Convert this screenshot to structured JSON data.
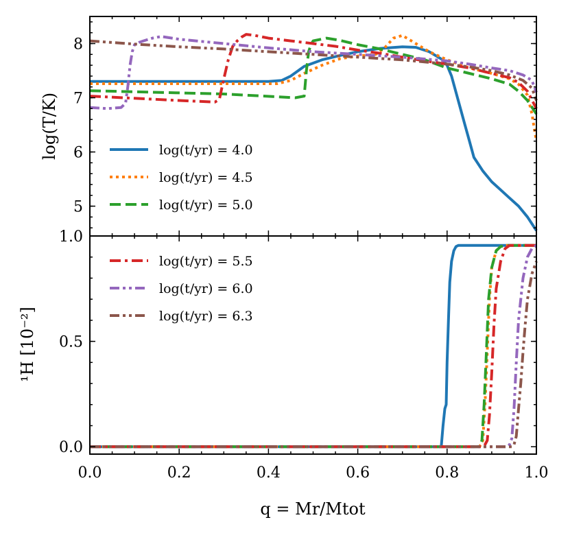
{
  "chart_data": [
    {
      "panel": "top",
      "type": "line",
      "ylabel": "log(T/K)",
      "xlim": [
        0.0,
        1.0
      ],
      "ylim": [
        4.45,
        8.5
      ],
      "yticks": [
        5,
        6,
        7,
        8
      ],
      "yticklabels": [
        "5",
        "6",
        "7",
        "8"
      ],
      "legend_position": "lower-left",
      "legend_entries": [
        "log(t/yr) = 4.0",
        "log(t/yr) = 4.5",
        "log(t/yr) = 5.0"
      ],
      "series": [
        {
          "name": "log(t/yr) = 4.0",
          "color": "#1f77b4",
          "dash": "solid",
          "x": [
            0,
            0.4,
            0.43,
            0.45,
            0.48,
            0.52,
            0.56,
            0.6,
            0.65,
            0.7,
            0.73,
            0.76,
            0.79,
            0.8,
            0.81,
            0.82,
            0.83,
            0.84,
            0.85,
            0.86,
            0.88,
            0.9,
            0.92,
            0.94,
            0.96,
            0.98,
            1.0
          ],
          "y": [
            7.3,
            7.3,
            7.32,
            7.4,
            7.58,
            7.7,
            7.78,
            7.85,
            7.91,
            7.94,
            7.93,
            7.85,
            7.7,
            7.6,
            7.4,
            7.1,
            6.8,
            6.5,
            6.2,
            5.9,
            5.65,
            5.45,
            5.3,
            5.15,
            5.0,
            4.8,
            4.55
          ]
        },
        {
          "name": "log(t/yr) = 4.5",
          "color": "#ff7f0e",
          "dash": "dotted",
          "x": [
            0,
            0.42,
            0.45,
            0.48,
            0.52,
            0.56,
            0.6,
            0.64,
            0.66,
            0.68,
            0.7,
            0.73,
            0.76,
            0.8,
            0.85,
            0.9,
            0.94,
            0.96,
            0.98,
            0.99,
            1.0
          ],
          "y": [
            7.26,
            7.26,
            7.32,
            7.45,
            7.6,
            7.72,
            7.77,
            7.8,
            7.92,
            8.1,
            8.15,
            8.0,
            7.85,
            7.7,
            7.55,
            7.45,
            7.35,
            7.25,
            7.05,
            6.7,
            6.2
          ]
        },
        {
          "name": "log(t/yr) = 5.0",
          "color": "#2ca02c",
          "dash": "dashed",
          "x": [
            0,
            0.3,
            0.46,
            0.48,
            0.485,
            0.49,
            0.495,
            0.5,
            0.53,
            0.56,
            0.6,
            0.65,
            0.7,
            0.75,
            0.8,
            0.85,
            0.9,
            0.94,
            0.96,
            0.98,
            1.0
          ],
          "y": [
            7.13,
            7.07,
            7.0,
            7.03,
            7.5,
            7.85,
            7.98,
            8.05,
            8.1,
            8.06,
            7.98,
            7.9,
            7.8,
            7.7,
            7.55,
            7.45,
            7.35,
            7.25,
            7.12,
            6.95,
            6.7
          ]
        },
        {
          "name": "log(t/yr) = 5.5",
          "color": "#d62728",
          "dash": "dashdot",
          "x": [
            0,
            0.1,
            0.2,
            0.28,
            0.29,
            0.3,
            0.31,
            0.32,
            0.33,
            0.34,
            0.35,
            0.37,
            0.4,
            0.45,
            0.5,
            0.55,
            0.6,
            0.65,
            0.7,
            0.75,
            0.8,
            0.85,
            0.9,
            0.94,
            0.96,
            0.98,
            1.0
          ],
          "y": [
            7.03,
            6.99,
            6.95,
            6.92,
            6.97,
            7.35,
            7.7,
            7.95,
            8.05,
            8.12,
            8.17,
            8.15,
            8.1,
            8.05,
            8.0,
            7.95,
            7.88,
            7.82,
            7.75,
            7.68,
            7.62,
            7.55,
            7.45,
            7.37,
            7.28,
            7.12,
            6.8
          ]
        },
        {
          "name": "log(t/yr) = 6.0",
          "color": "#9467bd",
          "dash": "dashdotdot",
          "x": [
            0,
            0.04,
            0.07,
            0.08,
            0.085,
            0.09,
            0.095,
            0.1,
            0.11,
            0.12,
            0.14,
            0.16,
            0.2,
            0.3,
            0.4,
            0.5,
            0.6,
            0.7,
            0.8,
            0.85,
            0.9,
            0.94,
            0.97,
            0.99,
            1.0
          ],
          "y": [
            6.82,
            6.8,
            6.82,
            6.9,
            7.2,
            7.6,
            7.85,
            7.98,
            8.02,
            8.05,
            8.1,
            8.13,
            8.08,
            8.0,
            7.92,
            7.85,
            7.8,
            7.75,
            7.68,
            7.62,
            7.55,
            7.5,
            7.42,
            7.32,
            7.1
          ]
        },
        {
          "name": "log(t/yr) = 6.3",
          "color": "#8c564b",
          "dash": "dashdotdot",
          "x": [
            0,
            0.1,
            0.2,
            0.3,
            0.4,
            0.5,
            0.6,
            0.7,
            0.8,
            0.85,
            0.9,
            0.94,
            0.97,
            0.99,
            1.0
          ],
          "y": [
            8.05,
            7.99,
            7.94,
            7.9,
            7.85,
            7.8,
            7.75,
            7.7,
            7.62,
            7.57,
            7.5,
            7.42,
            7.32,
            7.18,
            6.95
          ]
        }
      ]
    },
    {
      "panel": "bottom",
      "type": "line",
      "ylabel": "¹H [10⁻²]",
      "xlabel": "q = Mr/Mtot",
      "xlim": [
        0.0,
        1.0
      ],
      "ylim": [
        -0.035,
        1.0
      ],
      "xticks": [
        0.0,
        0.2,
        0.4,
        0.6,
        0.8,
        1.0
      ],
      "xticklabels": [
        "0.0",
        "0.2",
        "0.4",
        "0.6",
        "0.8",
        "1.0"
      ],
      "yticks": [
        0.0,
        0.5,
        1.0
      ],
      "yticklabels": [
        "0.0",
        "0.5",
        "1.0"
      ],
      "legend_position": "upper-left",
      "legend_entries": [
        "log(t/yr) = 5.5",
        "log(t/yr) = 6.0",
        "log(t/yr) = 6.3"
      ],
      "series": [
        {
          "name": "log(t/yr) = 4.0",
          "color": "#1f77b4",
          "dash": "solid",
          "x": [
            0,
            0.787,
            0.791,
            0.795,
            0.798,
            0.8,
            0.803,
            0.806,
            0.81,
            0.815,
            0.82,
            0.825,
            1.0
          ],
          "y": [
            0,
            0,
            0.1,
            0.18,
            0.2,
            0.4,
            0.6,
            0.78,
            0.88,
            0.93,
            0.95,
            0.955,
            0.955
          ]
        },
        {
          "name": "log(t/yr) = 4.5",
          "color": "#ff7f0e",
          "dash": "dotted",
          "x": [
            0,
            0.872,
            0.876,
            0.88,
            0.885,
            0.89,
            0.895,
            0.9,
            0.91,
            0.92,
            0.93,
            1.0
          ],
          "y": [
            0,
            0,
            0.01,
            0.03,
            0.2,
            0.45,
            0.7,
            0.85,
            0.93,
            0.95,
            0.955,
            0.955
          ]
        },
        {
          "name": "log(t/yr) = 5.0",
          "color": "#2ca02c",
          "dash": "dashed",
          "x": [
            0,
            0.87,
            0.874,
            0.878,
            0.883,
            0.888,
            0.893,
            0.9,
            0.91,
            0.92,
            0.93,
            1.0
          ],
          "y": [
            0,
            0,
            0.01,
            0.03,
            0.2,
            0.45,
            0.7,
            0.85,
            0.93,
            0.95,
            0.955,
            0.955
          ]
        },
        {
          "name": "log(t/yr) = 5.5",
          "color": "#d62728",
          "dash": "dashdot",
          "x": [
            0,
            0.88,
            0.885,
            0.89,
            0.895,
            0.9,
            0.905,
            0.91,
            0.92,
            0.93,
            0.94,
            1.0
          ],
          "y": [
            0,
            0,
            0.01,
            0.03,
            0.15,
            0.35,
            0.58,
            0.75,
            0.88,
            0.94,
            0.955,
            0.955
          ]
        },
        {
          "name": "log(t/yr) = 6.0",
          "color": "#9467bd",
          "dash": "dashdotdot",
          "x": [
            0,
            0.935,
            0.94,
            0.945,
            0.95,
            0.955,
            0.96,
            0.97,
            0.98,
            0.99,
            1.0
          ],
          "y": [
            0,
            0,
            0.01,
            0.04,
            0.18,
            0.4,
            0.6,
            0.8,
            0.9,
            0.94,
            0.955
          ]
        },
        {
          "name": "log(t/yr) = 6.3",
          "color": "#8c564b",
          "dash": "dashdotdot",
          "x": [
            0,
            0.945,
            0.95,
            0.955,
            0.96,
            0.965,
            0.97,
            0.975,
            0.98,
            0.99,
            1.0
          ],
          "y": [
            0,
            0,
            0.01,
            0.05,
            0.18,
            0.3,
            0.45,
            0.58,
            0.7,
            0.82,
            0.88
          ]
        }
      ]
    }
  ]
}
